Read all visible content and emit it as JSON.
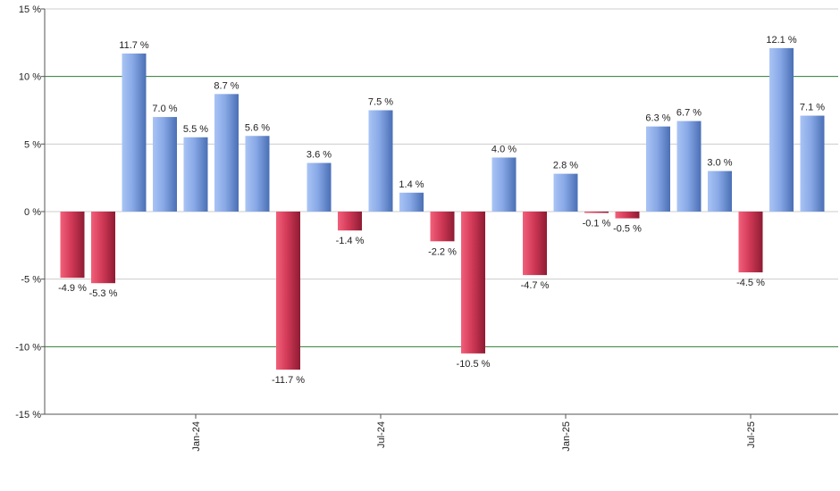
{
  "chart_data": {
    "type": "bar",
    "title": "",
    "xlabel": "",
    "ylabel": "",
    "ylim": [
      -15,
      15
    ],
    "y_ticks": [
      15,
      10,
      5,
      0,
      -5,
      -10,
      -15
    ],
    "y_tick_labels": [
      "15 %",
      "10 %",
      "5 %",
      "0 %",
      "-5 %",
      "-10 %",
      "-15 %"
    ],
    "x_ticks": [
      {
        "label": "Jan-24",
        "index": 4
      },
      {
        "label": "Jul-24",
        "index": 10
      },
      {
        "label": "Jan-25",
        "index": 16
      },
      {
        "label": "Jul-25",
        "index": 22
      }
    ],
    "values": [
      -4.9,
      -5.3,
      11.7,
      7.0,
      5.5,
      8.7,
      5.6,
      -11.7,
      3.6,
      -1.4,
      7.5,
      1.4,
      -2.2,
      -10.5,
      4.0,
      -4.7,
      2.8,
      -0.1,
      -0.5,
      6.3,
      6.7,
      3.0,
      -4.5,
      12.1,
      7.1
    ],
    "labels": [
      "-4.9 %",
      "-5.3 %",
      "11.7 %",
      "7.0 %",
      "5.5 %",
      "8.7 %",
      "5.6 %",
      "-11.7 %",
      "3.6 %",
      "-1.4 %",
      "7.5 %",
      "1.4 %",
      "-2.2 %",
      "-10.5 %",
      "4.0 %",
      "-4.7 %",
      "2.8 %",
      "-0.1 %",
      "-0.5 %",
      "6.3 %",
      "6.7 %",
      "3.0 %",
      "-4.5 %",
      "12.1 %",
      "7.1 %"
    ],
    "highlight_lines": [
      10,
      -10
    ],
    "grid": true,
    "legend": "none",
    "colors": {
      "positive_light": "#a9c4f5",
      "positive_dark": "#4a6fb5",
      "negative_light": "#f2607a",
      "negative_dark": "#8e1b33",
      "gridline": "#cccccc",
      "highlight_line": "#2e7d32",
      "axis": "#555555"
    }
  }
}
